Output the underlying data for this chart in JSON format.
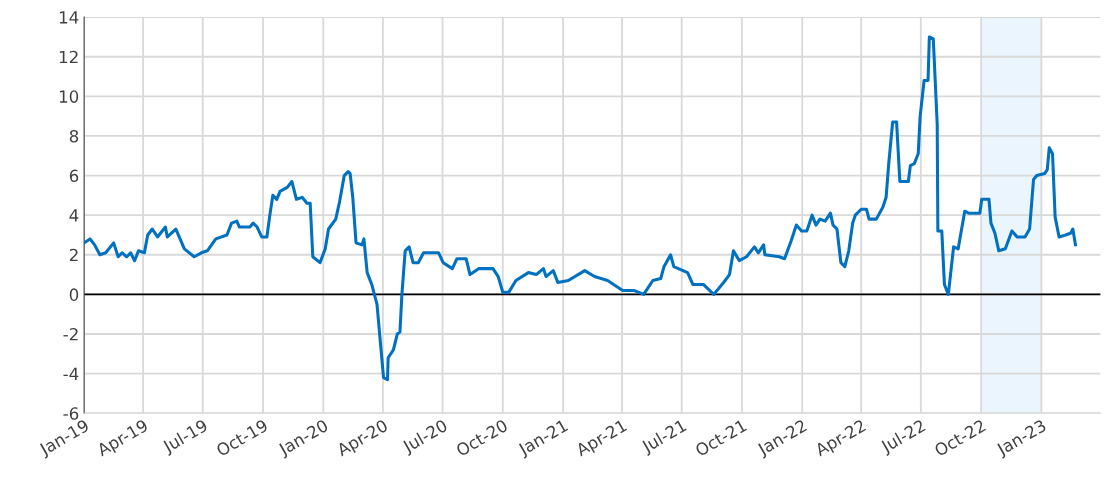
{
  "chart_data": {
    "type": "line",
    "x": [
      "2019-01-01",
      "2019-01-10",
      "2019-01-17",
      "2019-01-25",
      "2019-02-03",
      "2019-02-15",
      "2019-02-22",
      "2019-02-28",
      "2019-03-07",
      "2019-03-13",
      "2019-03-19",
      "2019-03-25",
      "2019-04-03",
      "2019-04-08",
      "2019-04-15",
      "2019-04-23",
      "2019-05-05",
      "2019-05-08",
      "2019-05-21",
      "2019-06-03",
      "2019-06-18",
      "2019-06-29",
      "2019-07-08",
      "2019-07-21",
      "2019-08-07",
      "2019-08-14",
      "2019-08-22",
      "2019-08-26",
      "2019-09-11",
      "2019-09-16",
      "2019-09-22",
      "2019-09-29",
      "2019-10-07",
      "2019-10-11",
      "2019-10-16",
      "2019-10-22",
      "2019-10-27",
      "2019-11-07",
      "2019-11-14",
      "2019-11-21",
      "2019-11-30",
      "2019-12-07",
      "2019-12-12",
      "2019-12-16",
      "2019-12-27",
      "2020-01-04",
      "2020-01-09",
      "2020-01-20",
      "2020-01-26",
      "2020-02-02",
      "2020-02-08",
      "2020-02-11",
      "2020-02-15",
      "2020-02-20",
      "2020-02-29",
      "2020-03-03",
      "2020-03-08",
      "2020-03-15",
      "2020-03-23",
      "2020-03-27",
      "2020-04-02",
      "2020-04-08",
      "2020-04-09",
      "2020-04-17",
      "2020-04-23",
      "2020-04-27",
      "2020-04-30",
      "2020-05-05",
      "2020-05-11",
      "2020-05-17",
      "2020-05-25",
      "2020-06-02",
      "2020-06-17",
      "2020-06-25",
      "2020-07-02",
      "2020-07-16",
      "2020-07-23",
      "2020-08-06",
      "2020-08-12",
      "2020-08-25",
      "2020-09-16",
      "2020-09-24",
      "2020-10-01",
      "2020-10-10",
      "2020-10-21",
      "2020-11-09",
      "2020-11-21",
      "2020-12-02",
      "2020-12-06",
      "2020-12-17",
      "2020-12-24",
      "2021-01-09",
      "2021-02-03",
      "2021-02-18",
      "2021-03-10",
      "2021-03-19",
      "2021-04-02",
      "2021-04-19",
      "2021-05-04",
      "2021-05-18",
      "2021-05-30",
      "2021-06-04",
      "2021-06-14",
      "2021-06-19",
      "2021-07-10",
      "2021-07-18",
      "2021-08-03",
      "2021-08-19",
      "2021-09-03",
      "2021-09-12",
      "2021-09-18",
      "2021-09-27",
      "2021-10-08",
      "2021-10-20",
      "2021-10-26",
      "2021-11-03",
      "2021-11-05",
      "2021-11-27",
      "2021-12-05",
      "2021-12-15",
      "2021-12-23",
      "2021-12-31",
      "2022-01-08",
      "2022-01-16",
      "2022-01-22",
      "2022-01-28",
      "2022-02-05",
      "2022-02-13",
      "2022-02-17",
      "2022-02-23",
      "2022-03-01",
      "2022-03-07",
      "2022-03-13",
      "2022-03-19",
      "2022-03-23",
      "2022-04-01",
      "2022-04-09",
      "2022-04-13",
      "2022-04-24",
      "2022-05-04",
      "2022-05-09",
      "2022-05-13",
      "2022-05-19",
      "2022-05-25",
      "2022-05-30",
      "2022-06-12",
      "2022-06-15",
      "2022-06-21",
      "2022-06-27",
      "2022-06-30",
      "2022-07-06",
      "2022-07-12",
      "2022-07-14",
      "2022-07-20",
      "2022-07-26",
      "2022-07-27",
      "2022-08-02",
      "2022-08-06",
      "2022-08-12",
      "2022-08-20",
      "2022-08-27",
      "2022-09-06",
      "2022-09-12",
      "2022-09-29",
      "2022-10-02",
      "2022-10-13",
      "2022-10-16",
      "2022-10-22",
      "2022-10-28",
      "2022-11-07",
      "2022-11-17",
      "2022-11-25",
      "2022-12-07",
      "2022-12-14",
      "2022-12-20",
      "2022-12-25",
      "2023-01-06",
      "2023-01-10",
      "2023-01-13",
      "2023-01-18",
      "2023-01-22",
      "2023-01-28",
      "2023-02-07",
      "2023-02-15",
      "2023-02-18",
      "2023-02-22"
    ],
    "series": [
      {
        "color": "#0070c0",
        "values": [
          2.6,
          2.8,
          2.5,
          2.0,
          2.1,
          2.6,
          1.9,
          2.1,
          1.9,
          2.1,
          1.7,
          2.2,
          2.1,
          3.0,
          3.3,
          2.9,
          3.4,
          2.9,
          3.3,
          2.3,
          1.9,
          2.1,
          2.2,
          2.8,
          3.0,
          3.6,
          3.7,
          3.4,
          3.4,
          3.6,
          3.4,
          2.9,
          2.9,
          3.9,
          5.0,
          4.8,
          5.2,
          5.4,
          5.7,
          4.8,
          4.9,
          4.6,
          4.6,
          1.9,
          1.6,
          2.3,
          3.3,
          3.8,
          4.7,
          6.0,
          6.2,
          6.1,
          4.9,
          2.6,
          2.5,
          2.8,
          1.1,
          0.5,
          -0.5,
          -2.0,
          -4.2,
          -4.3,
          -3.2,
          -2.8,
          -2.0,
          -1.9,
          0.0,
          2.2,
          2.4,
          1.6,
          1.6,
          2.1,
          2.1,
          2.1,
          1.6,
          1.3,
          1.8,
          1.8,
          1.0,
          1.3,
          1.3,
          0.9,
          0.1,
          0.1,
          0.7,
          1.1,
          1.0,
          1.3,
          0.9,
          1.2,
          0.6,
          0.7,
          1.2,
          0.9,
          0.7,
          0.5,
          0.2,
          0.2,
          0.0,
          0.7,
          0.8,
          1.4,
          2.0,
          1.4,
          1.1,
          0.5,
          0.5,
          0.0,
          0.6,
          1.0,
          2.2,
          1.7,
          1.9,
          2.4,
          2.1,
          2.5,
          2.0,
          1.9,
          1.8,
          2.7,
          3.5,
          3.2,
          3.2,
          4.0,
          3.5,
          3.8,
          3.7,
          4.1,
          3.5,
          3.3,
          1.6,
          1.4,
          2.2,
          3.6,
          4.0,
          4.3,
          4.3,
          3.8,
          3.8,
          4.4,
          4.9,
          6.6,
          8.7,
          8.7,
          5.7,
          5.7,
          6.5,
          6.6,
          7.1,
          9.0,
          10.8,
          10.8,
          13.0,
          12.9,
          8.6,
          3.2,
          3.2,
          0.5,
          0.0,
          2.4,
          2.3,
          4.2,
          4.1,
          4.1,
          4.8,
          4.8,
          3.6,
          3.1,
          2.2,
          2.3,
          3.2,
          2.9,
          2.9,
          3.3,
          5.8,
          6.0,
          6.1,
          6.3,
          7.4,
          7.1,
          3.9,
          2.9,
          3.0,
          3.1,
          3.3,
          2.5
        ]
      }
    ],
    "xlim": [
      "2019-01-01",
      "2023-04-01"
    ],
    "xticks": [
      {
        "value": "2019-01-01",
        "label": "Jan-19"
      },
      {
        "value": "2019-04-01",
        "label": "Apr-19"
      },
      {
        "value": "2019-07-01",
        "label": "Jul-19"
      },
      {
        "value": "2019-10-01",
        "label": "Oct-19"
      },
      {
        "value": "2020-01-01",
        "label": "Jan-20"
      },
      {
        "value": "2020-04-01",
        "label": "Apr-20"
      },
      {
        "value": "2020-07-01",
        "label": "Jul-20"
      },
      {
        "value": "2020-10-01",
        "label": "Oct-20"
      },
      {
        "value": "2021-01-01",
        "label": "Jan-21"
      },
      {
        "value": "2021-04-01",
        "label": "Apr-21"
      },
      {
        "value": "2021-07-01",
        "label": "Jul-21"
      },
      {
        "value": "2021-10-01",
        "label": "Oct-21"
      },
      {
        "value": "2022-01-01",
        "label": "Jan-22"
      },
      {
        "value": "2022-04-01",
        "label": "Apr-22"
      },
      {
        "value": "2022-07-01",
        "label": "Jul-22"
      },
      {
        "value": "2022-10-01",
        "label": "Oct-22"
      },
      {
        "value": "2023-01-01",
        "label": "Jan-23"
      }
    ],
    "ylim": [
      -6,
      14
    ],
    "yticks": [
      -6,
      -4,
      -2,
      0,
      2,
      4,
      6,
      8,
      10,
      12,
      14
    ],
    "grid": true,
    "line_style": "solid",
    "ref_lines": [
      {
        "axis": "y",
        "value": 0,
        "color": "#000000"
      }
    ],
    "bands": [
      {
        "axis": "x",
        "from": "2022-10-01",
        "to": "2023-01-01",
        "color": "#eaf5fd"
      }
    ]
  }
}
